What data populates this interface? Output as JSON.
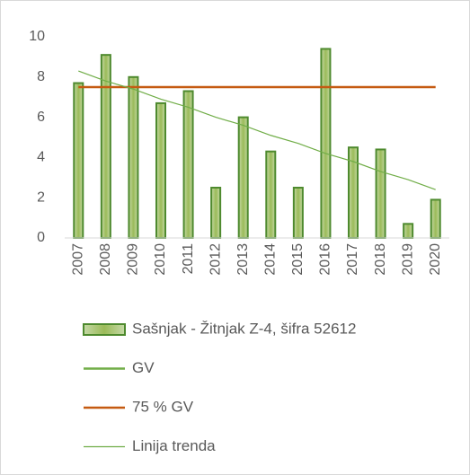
{
  "chart_data": {
    "type": "bar",
    "categories": [
      "2007",
      "2008",
      "2009",
      "2010",
      "2011",
      "2012",
      "2013",
      "2014",
      "2015",
      "2016",
      "2017",
      "2018",
      "2019",
      "2020"
    ],
    "series": [
      {
        "name": "Sašnjak - Žitnjak Z-4, šifra 52612",
        "type": "bar",
        "color": "#9bbb59",
        "values": [
          7.7,
          9.1,
          8.0,
          6.7,
          7.3,
          2.5,
          6.0,
          4.3,
          2.5,
          9.4,
          4.5,
          4.4,
          0.7,
          1.9
        ]
      },
      {
        "name": "GV",
        "type": "line",
        "color": "#70ad47",
        "values": [
          null,
          null,
          null,
          null,
          null,
          null,
          null,
          null,
          null,
          null,
          null,
          null,
          null,
          null
        ]
      },
      {
        "name": "75 % GV",
        "type": "line",
        "color": "#c55a11",
        "values": [
          7.5,
          7.5,
          7.5,
          7.5,
          7.5,
          7.5,
          7.5,
          7.5,
          7.5,
          7.5,
          7.5,
          7.5,
          7.5,
          7.5
        ]
      },
      {
        "name": "Linija trenda",
        "type": "trend",
        "color": "#70ad47",
        "values": [
          8.3,
          7.8,
          7.4,
          6.9,
          6.5,
          6.0,
          5.6,
          5.1,
          4.7,
          4.2,
          3.8,
          3.3,
          2.9,
          2.4
        ]
      }
    ],
    "ylim": [
      0,
      10
    ],
    "yticks": [
      0,
      2,
      4,
      6,
      8,
      10
    ],
    "grid": false,
    "legend": "bottom"
  }
}
